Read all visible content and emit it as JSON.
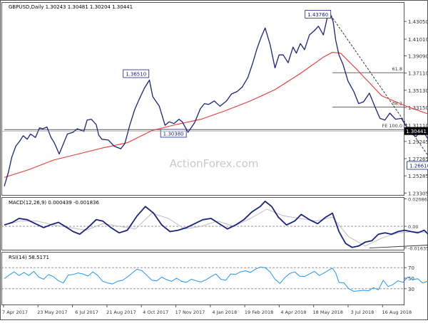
{
  "chart_data": [
    {
      "type": "line",
      "panel": "price",
      "title": "GBPUSD,Daily  1.30243 1.30481 1.30204 1.30441",
      "ylim": [
        1.2309,
        1.4527
      ],
      "y_ticks": [
        1.4305,
        1.4101,
        1.3909,
        1.3711,
        1.3513,
        1.3315,
        1.3111,
        1.29245,
        1.27265,
        1.25285,
        1.23305
      ],
      "y_tick_labels": [
        "1.43050",
        "1.41010",
        "1.39090",
        "1.37110",
        "1.35130",
        "1.33150",
        "1.31110",
        "1.29245",
        "1.27265",
        "1.25285",
        "1.23305"
      ],
      "last_price_label": "1.30441",
      "series": [
        {
          "name": "",
          "color": "#1a237e",
          "x": [
            0,
            5,
            9,
            14,
            19,
            23,
            28,
            32,
            38,
            43,
            47,
            52,
            57,
            61,
            67,
            70,
            77,
            84,
            89,
            97,
            101,
            106,
            112,
            115,
            119,
            127,
            134,
            142,
            147,
            153,
            159,
            164,
            171,
            177,
            181,
            189,
            196,
            201,
            207,
            213,
            217,
            224,
            232,
            239,
            244,
            249,
            256,
            263,
            271,
            277,
            284,
            290,
            297,
            303,
            308,
            313,
            318,
            324,
            330,
            335,
            340,
            346,
            352,
            356,
            361,
            366,
            372,
            378,
            383,
            389,
            394,
            398,
            401,
            404,
            408,
            413,
            419,
            426,
            432,
            438,
            445,
            452,
            458,
            464,
            470,
            477,
            484,
            490,
            497,
            502,
            506,
            511,
            516,
            521,
            526,
            531,
            536,
            541,
            545,
            549,
            553,
            557
          ],
          "values": [
            1.241,
            1.257,
            1.274,
            1.287,
            1.293,
            1.299,
            1.295,
            1.301,
            1.297,
            1.308,
            1.307,
            1.309,
            1.297,
            1.291,
            1.278,
            1.285,
            1.301,
            1.303,
            1.307,
            1.304,
            1.317,
            1.318,
            1.312,
            1.3,
            1.295,
            1.294,
            1.287,
            1.284,
            1.29,
            1.311,
            1.329,
            1.34,
            1.354,
            1.363,
            1.344,
            1.333,
            1.311,
            1.315,
            1.313,
            1.318,
            1.315,
            1.303,
            1.314,
            1.33,
            1.336,
            1.335,
            1.339,
            1.333,
            1.339,
            1.347,
            1.35,
            1.355,
            1.366,
            1.383,
            1.399,
            1.412,
            1.423,
            1.404,
            1.377,
            1.392,
            1.392,
            1.383,
            1.401,
            1.394,
            1.405,
            1.398,
            1.415,
            1.42,
            1.425,
            1.415,
            1.436,
            1.438,
            1.43,
            1.409,
            1.392,
            1.381,
            1.362,
            1.35,
            1.336,
            1.338,
            1.348,
            1.332,
            1.319,
            1.317,
            1.325,
            1.318,
            1.319,
            1.31,
            1.301,
            1.298,
            1.303,
            1.304,
            1.296,
            1.285,
            1.278,
            1.269,
            1.28,
            1.284,
            1.294,
            1.291,
            1.301,
            1.304
          ]
        },
        {
          "name": "",
          "color": "#e53935",
          "x": [
            0,
            30,
            60,
            90,
            120,
            150,
            180,
            210,
            240,
            270,
            300,
            330,
            360,
            390,
            400,
            410,
            430,
            460,
            490,
            520,
            540,
            555
          ],
          "values": [
            1.251,
            1.26,
            1.271,
            1.278,
            1.285,
            1.291,
            1.305,
            1.312,
            1.318,
            1.328,
            1.339,
            1.352,
            1.37,
            1.39,
            1.395,
            1.394,
            1.375,
            1.345,
            1.333,
            1.323,
            1.307,
            1.302
          ]
        }
      ],
      "x_ticks": [
        {
          "x": 0,
          "label": "7 Apr 2017"
        },
        {
          "x": 58,
          "label": "23 May 2017"
        },
        {
          "x": 115,
          "label": "6 Jul 2017"
        },
        {
          "x": 173,
          "label": "21 Aug 2017"
        },
        {
          "x": 231,
          "label": "4 Oct 2017"
        },
        {
          "x": 289,
          "label": "17 Nov 2017"
        },
        {
          "x": 347,
          "label": "4 Jan 2018"
        },
        {
          "x": 405,
          "label": "19 Feb 2018"
        },
        {
          "x": 463,
          "label": "4 Apr 2018"
        },
        {
          "x": 521,
          "label": "18 May 2018"
        },
        {
          "x": 579,
          "label": "3 Jul 2018"
        },
        {
          "x": 637,
          "label": "16 Aug 2018"
        }
      ],
      "annotations": [
        {
          "label": "1.43760",
          "x": 398,
          "y": 1.4376
        },
        {
          "label": "1.36510",
          "x": 178,
          "y": 1.3651
        },
        {
          "label": "1.30380",
          "x": 221,
          "y": 1.3038
        },
        {
          "label": "1.26610",
          "x": 524,
          "y": 1.2661
        }
      ],
      "levels": [
        {
          "label": "61.8",
          "value": 1.3715,
          "x_from": 400
        },
        {
          "label": "38.2",
          "value": 1.332,
          "x_from": 400
        },
        {
          "label": "FE 100.0",
          "value": 1.306,
          "x_from": 0
        }
      ],
      "trendlines": [
        {
          "from": [
            398,
            1.4376
          ],
          "to": [
            524,
            1.2661
          ],
          "style": "dashed"
        }
      ],
      "watermark": "ActionForex.com"
    },
    {
      "type": "line",
      "panel": "macd",
      "title": "MACD(12,26,9) 0.000439 -0.001836",
      "ylim": [
        -0.0178,
        0.0222
      ],
      "y_tick_labels": [
        "0.020861",
        "0.00",
        "-0.016357"
      ],
      "y_ticks": [
        0.020861,
        0.0,
        -0.016357
      ],
      "series": [
        {
          "name": "",
          "color": "#1a237e",
          "x": [
            0,
            10,
            18,
            28,
            38,
            48,
            56,
            66,
            74,
            84,
            92,
            102,
            112,
            120,
            130,
            140,
            150,
            162,
            172,
            182,
            192,
            202,
            212,
            222,
            232,
            242,
            252,
            262,
            272,
            282,
            292,
            302,
            312,
            318,
            326,
            334,
            344,
            354,
            362,
            372,
            382,
            392,
            400,
            408,
            416,
            424,
            432,
            440,
            448,
            456,
            464,
            472,
            480,
            488,
            496,
            504,
            512,
            520,
            526,
            532,
            540,
            548,
            555
          ],
          "values": [
            0.001,
            0.003,
            0.006,
            0.005,
            0.002,
            -0.001,
            0.001,
            0.003,
            0.0,
            -0.004,
            -0.006,
            -0.001,
            0.005,
            0.004,
            -0.001,
            -0.005,
            -0.003,
            0.008,
            0.015,
            0.01,
            0.001,
            -0.004,
            -0.003,
            -0.001,
            0.002,
            0.005,
            0.006,
            0.002,
            -0.002,
            0.001,
            0.005,
            0.011,
            0.015,
            0.019,
            0.015,
            0.007,
            0.001,
            0.004,
            0.009,
            0.005,
            0.002,
            0.007,
            0.01,
            -0.004,
            -0.013,
            -0.016,
            -0.015,
            -0.012,
            -0.011,
            -0.006,
            -0.005,
            -0.006,
            -0.004,
            -0.003,
            -0.004,
            -0.005,
            -0.003,
            -0.008,
            -0.011,
            -0.007,
            -0.002,
            -0.001,
            0.0004
          ]
        },
        {
          "name": "",
          "color": "#bdbdbd",
          "x": [
            0,
            20,
            40,
            60,
            80,
            100,
            120,
            140,
            160,
            180,
            200,
            220,
            240,
            260,
            280,
            300,
            320,
            340,
            360,
            380,
            400,
            420,
            440,
            460,
            480,
            500,
            520,
            540,
            555
          ],
          "values": [
            0.001,
            0.004,
            0.004,
            0.001,
            -0.001,
            -0.003,
            0.002,
            0.0,
            -0.002,
            0.01,
            0.006,
            -0.002,
            0.0,
            0.004,
            0.0,
            0.006,
            0.013,
            0.008,
            0.006,
            0.004,
            0.007,
            -0.008,
            -0.015,
            -0.009,
            -0.005,
            -0.004,
            -0.005,
            -0.006,
            -0.0018
          ]
        }
      ],
      "trendlines": [
        {
          "from": [
            445,
            -0.0165
          ],
          "to": [
            558,
            -0.013
          ],
          "style": "solid"
        }
      ]
    },
    {
      "type": "line",
      "panel": "rsi",
      "title": "RSI(14) 58.5171",
      "ylim": [
        0,
        100
      ],
      "y_ticks": [
        70,
        50,
        30
      ],
      "y_tick_labels": [
        "70",
        "50",
        "30"
      ],
      "levels": [
        {
          "value": 70,
          "style": "dashed"
        },
        {
          "value": 30,
          "style": "dashed"
        }
      ],
      "series": [
        {
          "name": "",
          "color": "#2196f3",
          "x": [
            0,
            6,
            12,
            18,
            24,
            30,
            36,
            42,
            48,
            54,
            60,
            66,
            72,
            78,
            84,
            90,
            96,
            102,
            108,
            114,
            120,
            126,
            132,
            138,
            144,
            150,
            156,
            162,
            168,
            174,
            180,
            186,
            192,
            198,
            204,
            210,
            216,
            222,
            228,
            234,
            240,
            246,
            252,
            258,
            264,
            270,
            276,
            282,
            288,
            294,
            300,
            306,
            312,
            318,
            324,
            330,
            336,
            342,
            348,
            354,
            360,
            366,
            372,
            378,
            384,
            390,
            396,
            400,
            404,
            408,
            414,
            420,
            426,
            432,
            438,
            444,
            450,
            456,
            462,
            468,
            474,
            480,
            486,
            492,
            498,
            504,
            510,
            516,
            522,
            526,
            530,
            536,
            542,
            548,
            555
          ],
          "values": [
            49,
            56,
            62,
            55,
            61,
            55,
            63,
            52,
            48,
            57,
            53,
            45,
            41,
            56,
            57,
            60,
            58,
            54,
            62,
            55,
            44,
            41,
            39,
            44,
            46,
            52,
            60,
            67,
            64,
            55,
            46,
            45,
            52,
            47,
            44,
            50,
            44,
            42,
            48,
            45,
            43,
            47,
            53,
            58,
            48,
            46,
            58,
            57,
            62,
            64,
            61,
            67,
            71,
            70,
            62,
            48,
            40,
            51,
            59,
            62,
            54,
            53,
            58,
            63,
            55,
            60,
            66,
            69,
            60,
            42,
            41,
            30,
            25,
            26,
            27,
            26,
            32,
            28,
            46,
            34,
            38,
            45,
            42,
            52,
            47,
            49,
            41,
            44,
            36,
            26,
            24,
            41,
            48,
            51,
            58
          ]
        }
      ]
    }
  ],
  "x_axis_labels": [
    "7 Apr 2017",
    "23 May 2017",
    "6 Jul 2017",
    "21 Aug 2017",
    "4 Oct 2017",
    "17 Nov 2017",
    "4 Jan 2018",
    "19 Feb 2018",
    "4 Apr 2018",
    "18 May 2018",
    "3 Jul 2018",
    "16 Aug 2018"
  ]
}
